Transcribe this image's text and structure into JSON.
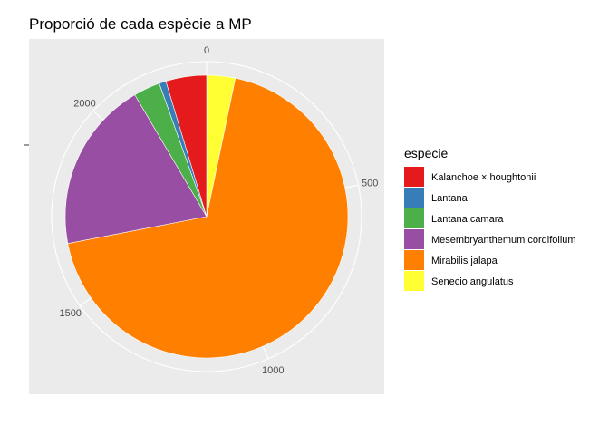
{
  "chart_data": {
    "type": "pie",
    "title": "Proporció de cada espècie a MP",
    "xlabel": "",
    "ylabel": "",
    "legend_title": "especie",
    "legend_position": "right",
    "categories": [
      "Kalanchoe × houghtonii",
      "Lantana",
      "Lantana camara",
      "Mesembryanthemum cordifolium",
      "Mirabilis jalapa",
      "Senecio angulatus"
    ],
    "values": [
      107,
      18,
      70,
      450,
      1580,
      75
    ],
    "stack_order": [
      "Senecio angulatus",
      "Mirabilis jalapa",
      "Mesembryanthemum cordifolium",
      "Lantana camara",
      "Lantana",
      "Kalanchoe × houghtonii"
    ],
    "colors": {
      "Kalanchoe × houghtonii": "#E41A1C",
      "Lantana": "#377EB8",
      "Lantana camara": "#4DAF4A",
      "Mesembryanthemum cordifolium": "#984EA3",
      "Mirabilis jalapa": "#FF7F00",
      "Senecio angulatus": "#FFFF33"
    },
    "ticks": [
      {
        "value": 0,
        "label": "0"
      },
      {
        "value": 500,
        "label": "500"
      },
      {
        "value": 1000,
        "label": "1000"
      },
      {
        "value": 1500,
        "label": "1500"
      },
      {
        "value": 2000,
        "label": "2000"
      }
    ],
    "panel_background": "#EBEBEB",
    "grid": true
  }
}
